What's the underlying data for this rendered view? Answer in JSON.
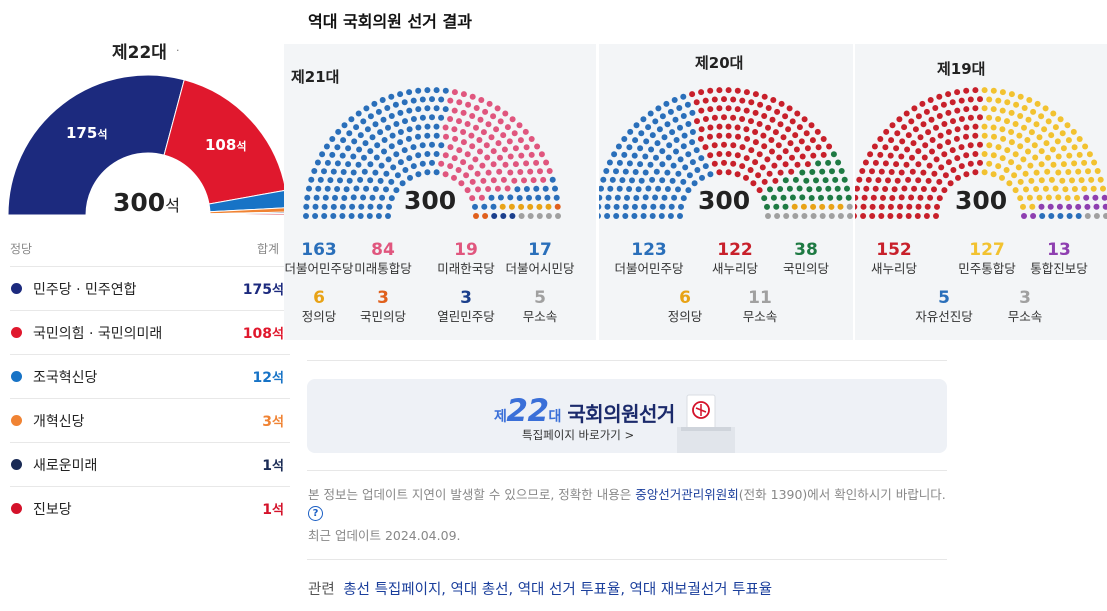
{
  "main_title": "역대 국회의원 선거 결과",
  "e22": {
    "title": "제22대",
    "title_dot": "·",
    "total_num": "300",
    "total_unit": "석",
    "arc_labels": [
      {
        "num": "175",
        "unit": "석"
      },
      {
        "num": "108",
        "unit": "석"
      }
    ],
    "header_party": "정당",
    "header_sum": "합계",
    "parties": [
      {
        "name": "민주당 · 민주연합",
        "seats": 175,
        "seats_num": "175",
        "unit": "석",
        "color": "#1c2a7e"
      },
      {
        "name": "국민의힘 · 국민의미래",
        "seats": 108,
        "seats_num": "108",
        "unit": "석",
        "color": "#e0182d"
      },
      {
        "name": "조국혁신당",
        "seats": 12,
        "seats_num": "12",
        "unit": "석",
        "color": "#1773c6"
      },
      {
        "name": "개혁신당",
        "seats": 3,
        "seats_num": "3",
        "unit": "석",
        "color": "#f08333"
      },
      {
        "name": "새로운미래",
        "seats": 1,
        "seats_num": "1",
        "unit": "석",
        "color": "#1a2b55"
      },
      {
        "name": "진보당",
        "seats": 1,
        "seats_num": "1",
        "unit": "석",
        "color": "#d4122a"
      }
    ]
  },
  "elections": [
    {
      "title": "제21대",
      "total": "300",
      "parties": [
        {
          "num": "163",
          "label": "더불어민주당",
          "color": "#2a6fba"
        },
        {
          "num": "84",
          "label": "미래통합당",
          "color": "#e0567e"
        },
        {
          "num": "19",
          "label": "미래한국당",
          "color": "#e0567e"
        },
        {
          "num": "17",
          "label": "더불어시민당",
          "color": "#2a6fba"
        },
        {
          "num": "6",
          "label": "정의당",
          "color": "#e8a317"
        },
        {
          "num": "3",
          "label": "국민의당",
          "color": "#e0601d"
        },
        {
          "num": "3",
          "label": "열린민주당",
          "color": "#1b3f8c"
        },
        {
          "num": "5",
          "label": "무소속",
          "color": "#a0a0a0"
        }
      ]
    },
    {
      "title": "제20대",
      "total": "300",
      "parties": [
        {
          "num": "123",
          "label": "더불어민주당",
          "color": "#2a6fba"
        },
        {
          "num": "122",
          "label": "새누리당",
          "color": "#c8202b"
        },
        {
          "num": "38",
          "label": "국민의당",
          "color": "#1e7a43"
        },
        {
          "num": "6",
          "label": "정의당",
          "color": "#e8a317"
        },
        {
          "num": "11",
          "label": "무소속",
          "color": "#a0a0a0"
        }
      ]
    },
    {
      "title": "제19대",
      "total": "300",
      "parties": [
        {
          "num": "152",
          "label": "새누리당",
          "color": "#c8202b"
        },
        {
          "num": "127",
          "label": "민주통합당",
          "color": "#f2c230"
        },
        {
          "num": "13",
          "label": "통합진보당",
          "color": "#8e3fb0"
        },
        {
          "num": "5",
          "label": "자유선진당",
          "color": "#2a6fba"
        },
        {
          "num": "3",
          "label": "무소속",
          "color": "#a0a0a0"
        }
      ]
    }
  ],
  "banner": {
    "prefix": "제",
    "num": "22",
    "suffix": "대",
    "title": "국회의원선거",
    "sub": "특집페이지 바로가기 >"
  },
  "notice": {
    "before": "본 정보는 업데이트 지연이 발생할 수 있으므로, 정확한 내용은 ",
    "link": "중앙선거관리위원회",
    "after": "(전화 1390)에서 확인하시기 바랍니다.",
    "help": "?"
  },
  "updated": "최근 업데이트 2024.04.09.",
  "related": {
    "label": "관련",
    "links": [
      "총선 특집페이지",
      "역대 총선",
      "역대 선거 투표율",
      "역대 재보궐선거 투표율"
    ]
  }
}
